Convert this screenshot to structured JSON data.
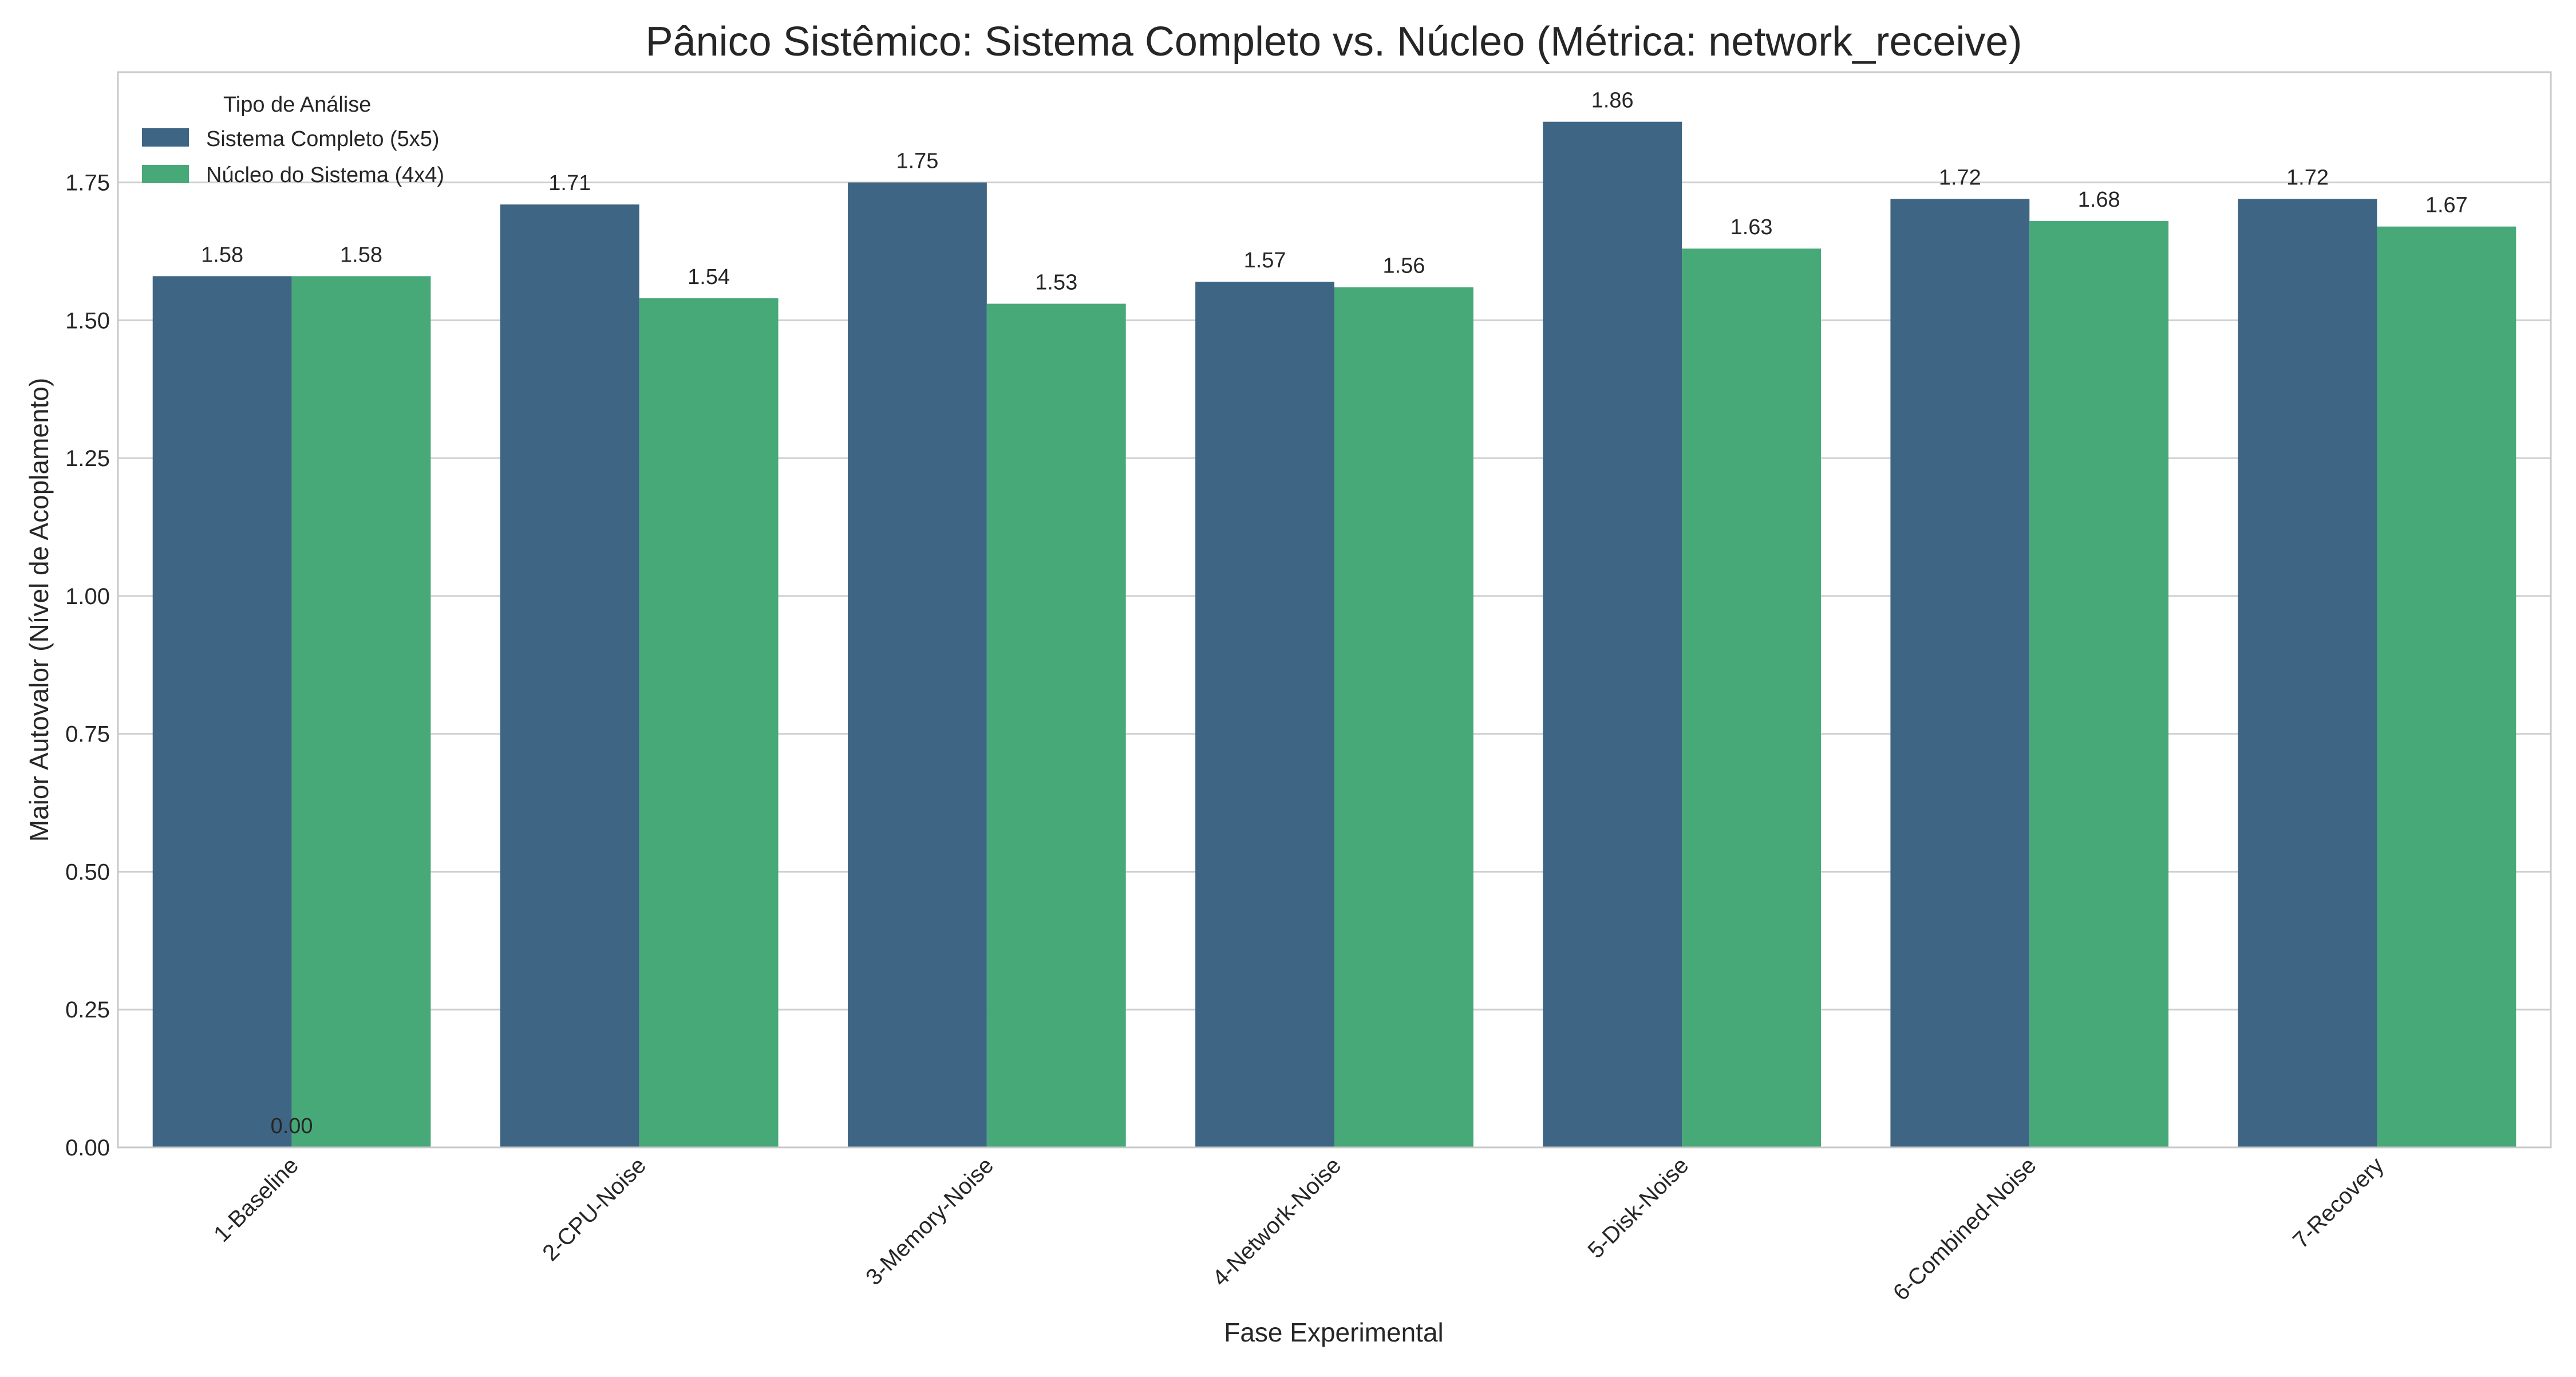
{
  "chart_data": {
    "type": "bar",
    "title": "Pânico Sistêmico: Sistema Completo vs. Núcleo (Métrica: network_receive)",
    "xlabel": "Fase Experimental",
    "ylabel": "Maior Autovalor (Nível de Acoplamento)",
    "categories": [
      "1-Baseline",
      "2-CPU-Noise",
      "3-Memory-Noise",
      "4-Network-Noise",
      "5-Disk-Noise",
      "6-Combined-Noise",
      "7-Recovery"
    ],
    "series": [
      {
        "name": "Sistema Completo (5x5)",
        "color": "#3e6583",
        "values": [
          1.58,
          1.71,
          1.75,
          1.57,
          1.86,
          1.72,
          1.72
        ],
        "labels": [
          "1.58",
          "1.71",
          "1.75",
          "1.57",
          "1.86",
          "1.72",
          "1.72"
        ]
      },
      {
        "name": "Núcleo do Sistema (4x4)",
        "color": "#47a978",
        "values": [
          1.58,
          1.54,
          1.53,
          1.56,
          1.63,
          1.68,
          1.67
        ],
        "labels": [
          "1.58",
          "1.54",
          "1.53",
          "1.56",
          "1.63",
          "1.68",
          "1.67"
        ]
      }
    ],
    "extra_annotation": "0.00",
    "ylim": [
      0,
      1.95
    ],
    "yticks": [
      0,
      0.25,
      0.5,
      0.75,
      1.0,
      1.25,
      1.5,
      1.75
    ],
    "ytick_labels": [
      "0.00",
      "0.25",
      "0.50",
      "0.75",
      "1.00",
      "1.25",
      "1.50",
      "1.75"
    ],
    "grid": true,
    "legend": {
      "title": "Tipo de Análise",
      "placement": "top-left"
    }
  }
}
